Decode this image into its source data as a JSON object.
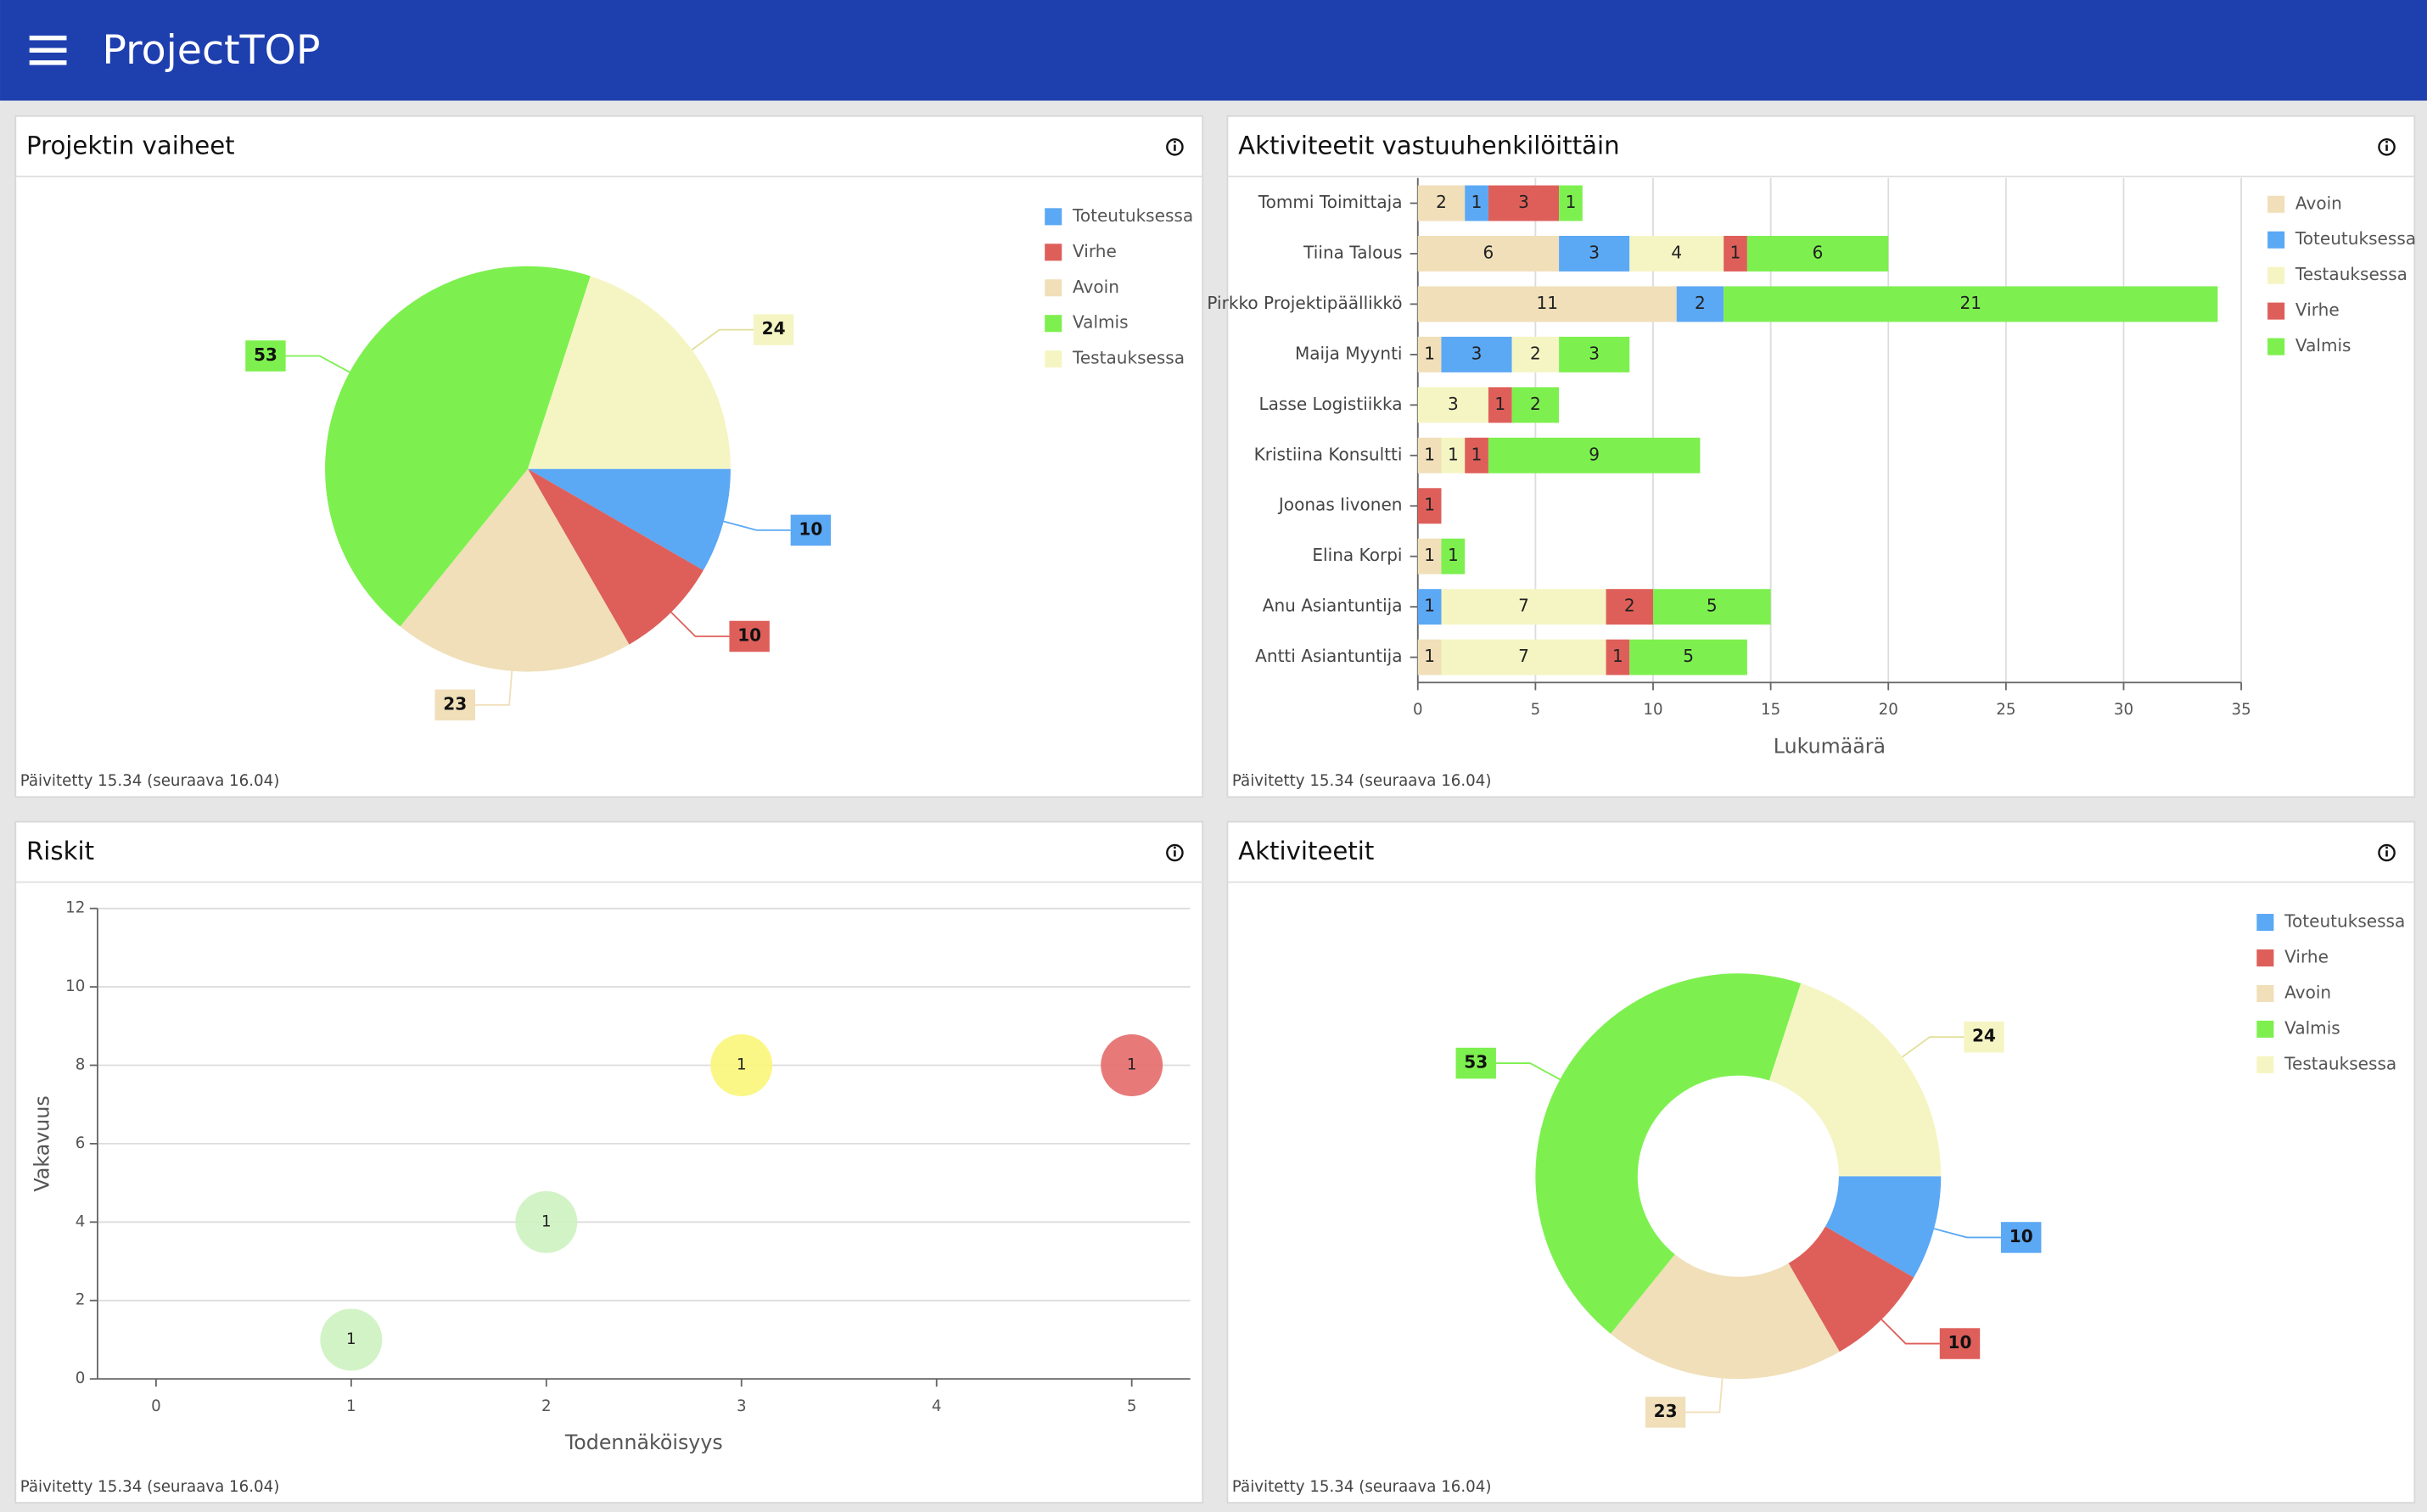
{
  "header": {
    "title": "ProjectTOP"
  },
  "chart_data": [
    {
      "type": "pie",
      "title": "Projektin vaiheet",
      "categories": [
        "Toteutuksessa",
        "Virhe",
        "Avoin",
        "Valmis",
        "Testauksessa"
      ],
      "values": [
        10,
        10,
        23,
        53,
        24
      ],
      "colors": [
        "#5ba8f5",
        "#de5f5a",
        "#f0dfb9",
        "#7df04f",
        "#f5f5c4"
      ],
      "legend": "top-right",
      "footer": "Päivitetty 15.34 (seuraava 16.04)"
    },
    {
      "type": "stacked-hbar",
      "title": "Aktiviteetit vastuuhenkilöittäin",
      "categories": [
        "Tommi Toimittaja",
        "Tiina Talous",
        "Pirkko Projektipäällikkö",
        "Maija Myynti",
        "Lasse Logistiikka",
        "Kristiina Konsultti",
        "Joonas Iivonen",
        "Elina Korpi",
        "Anu Asiantuntija",
        "Antti Asiantuntija"
      ],
      "series": [
        {
          "name": "Avoin",
          "color": "#f0dfb9",
          "values": [
            2,
            6,
            11,
            1,
            null,
            1,
            null,
            1,
            null,
            1
          ]
        },
        {
          "name": "Toteutuksessa",
          "color": "#5ba8f5",
          "values": [
            1,
            3,
            2,
            3,
            null,
            null,
            null,
            null,
            1,
            null
          ]
        },
        {
          "name": "Testauksessa",
          "color": "#f5f5c4",
          "values": [
            null,
            4,
            null,
            2,
            3,
            1,
            null,
            null,
            7,
            7
          ]
        },
        {
          "name": "Virhe",
          "color": "#de5f5a",
          "values": [
            3,
            1,
            null,
            null,
            1,
            1,
            1,
            null,
            2,
            1
          ]
        },
        {
          "name": "Valmis",
          "color": "#7df04f",
          "values": [
            1,
            6,
            21,
            3,
            2,
            9,
            null,
            1,
            5,
            5
          ]
        }
      ],
      "xlim": [
        0,
        35
      ],
      "xticks": [
        0,
        5,
        10,
        15,
        20,
        25,
        30,
        35
      ],
      "x_label": "Lukumäärä",
      "grid": true,
      "legend": "top-right",
      "footer": "Päivitetty 15.34 (seuraava 16.04)"
    },
    {
      "type": "bubble",
      "title": "Riskit",
      "x": [
        1,
        2,
        3,
        5
      ],
      "values": [
        1,
        4,
        8,
        8
      ],
      "sizes": [
        1,
        1,
        1,
        1
      ],
      "colors": [
        "#cdf2c0",
        "#cdf2c0",
        "#faf67a",
        "#e66a6a"
      ],
      "xlim": [
        -0.3,
        5.3
      ],
      "xticks": [
        0,
        1,
        2,
        3,
        4,
        5
      ],
      "ylim": [
        0,
        12
      ],
      "yticks": [
        0,
        2,
        4,
        6,
        8,
        10,
        12
      ],
      "x_label": "Todennäköisyys",
      "y_label": "Vakavuus",
      "grid": true,
      "footer": "Päivitetty 15.34 (seuraava 16.04)"
    },
    {
      "type": "donut",
      "title": "Aktiviteetit",
      "categories": [
        "Toteutuksessa",
        "Virhe",
        "Avoin",
        "Valmis",
        "Testauksessa"
      ],
      "values": [
        10,
        10,
        23,
        53,
        24
      ],
      "colors": [
        "#5ba8f5",
        "#de5f5a",
        "#f0dfb9",
        "#7df04f",
        "#f5f5c4"
      ],
      "legend": "top-right",
      "footer": "Päivitetty 15.34 (seuraava 16.04)"
    }
  ]
}
